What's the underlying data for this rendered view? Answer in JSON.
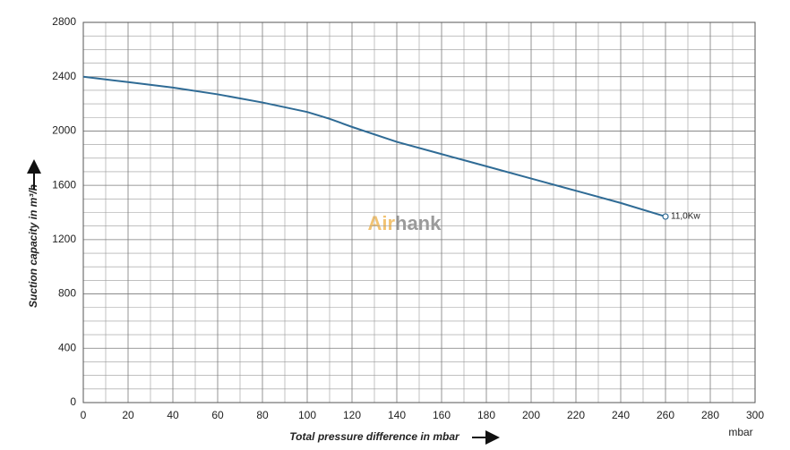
{
  "chart_data": {
    "type": "line",
    "x_label": "Total pressure difference in mbar",
    "y_label": "Suction capacity in m³/h",
    "x_unit": "mbar",
    "watermark": [
      "Air",
      "hank"
    ],
    "x": [
      0,
      20,
      40,
      60,
      80,
      100,
      110,
      120,
      140,
      160,
      180,
      200,
      220,
      240,
      260
    ],
    "series": [
      {
        "name": "11,0Kw",
        "color": "#2f6b95",
        "values": [
          2400,
          2360,
          2320,
          2270,
          2210,
          2140,
          2090,
          2030,
          1920,
          1830,
          1740,
          1650,
          1560,
          1470,
          1370
        ]
      }
    ],
    "xlim": [
      0,
      300
    ],
    "xticks": [
      0,
      20,
      40,
      60,
      80,
      100,
      120,
      140,
      160,
      180,
      200,
      220,
      240,
      260,
      280,
      300
    ],
    "ylim": [
      0,
      2800
    ],
    "yticks": [
      0,
      400,
      800,
      1200,
      1600,
      2000,
      2400,
      2800
    ],
    "grid": true
  }
}
